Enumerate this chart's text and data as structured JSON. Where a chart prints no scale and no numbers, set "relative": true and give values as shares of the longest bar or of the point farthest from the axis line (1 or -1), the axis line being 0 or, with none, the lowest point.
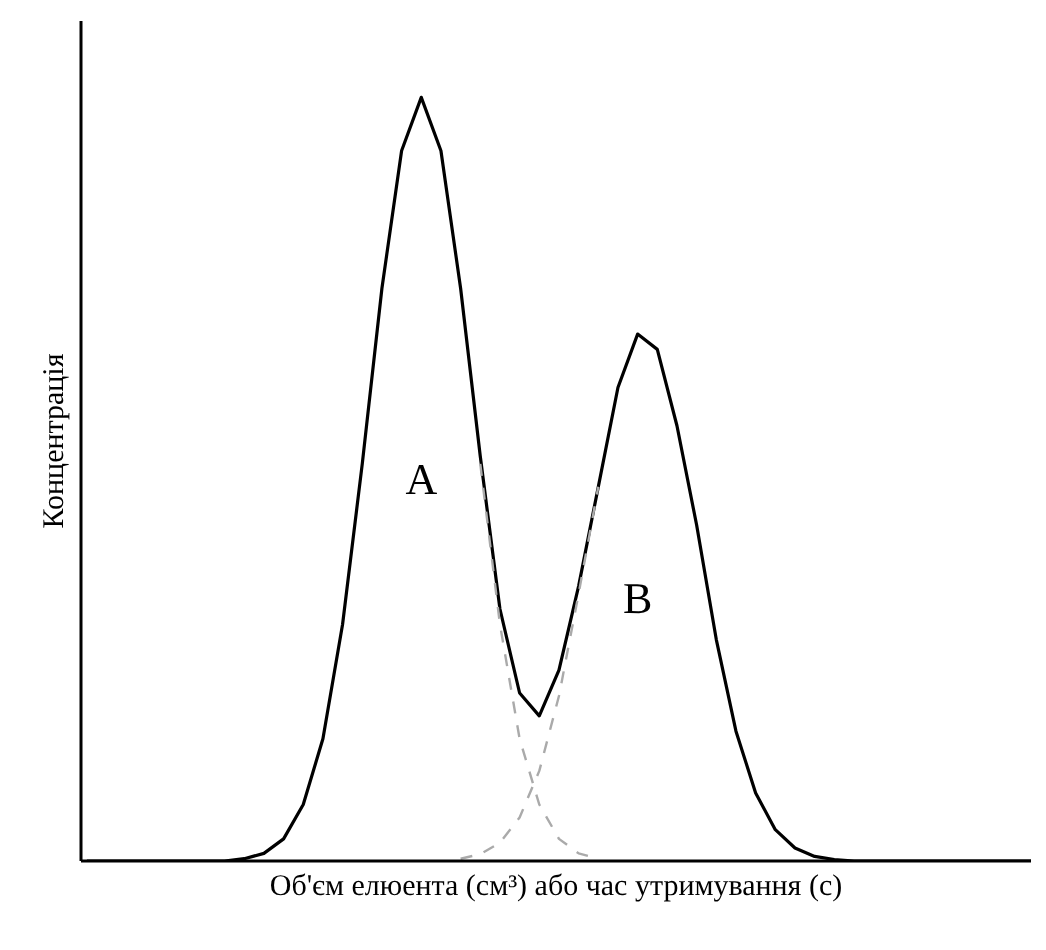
{
  "chart_data": {
    "type": "line",
    "relative": true,
    "xlabel": "Об'єм елюента (см³) або час утримування (с)",
    "ylabel": "Концентрація",
    "categories": [
      null,
      null,
      null,
      null,
      null,
      null,
      null,
      null,
      null,
      null,
      null,
      null,
      null,
      null,
      null,
      null,
      null,
      null,
      null,
      null,
      null,
      null,
      null,
      null,
      null,
      null,
      null,
      null,
      null,
      null,
      null,
      null,
      null,
      null,
      null,
      null,
      null,
      null,
      null,
      null,
      null,
      null,
      null,
      null,
      null,
      null,
      null,
      null,
      null
    ],
    "series": [
      {
        "color": "#000000",
        "line_style": "solid",
        "values": [
          0,
          0,
          0,
          0,
          0,
          0,
          0,
          0,
          0.003,
          0.01,
          0.029,
          0.074,
          0.16,
          0.31,
          0.52,
          0.75,
          0.93,
          1.0,
          0.93,
          0.75,
          0.53,
          0.33,
          0.22,
          0.19,
          0.25,
          0.36,
          0.49,
          0.62,
          0.69,
          0.67,
          0.57,
          0.44,
          0.29,
          0.17,
          0.089,
          0.041,
          0.017,
          0.006,
          0.002,
          0,
          0,
          0,
          0,
          0,
          0,
          0,
          0,
          0,
          0
        ]
      },
      {
        "color": "#aaaaaa",
        "line_style": "dashed",
        "values": [
          null,
          null,
          null,
          null,
          null,
          null,
          null,
          null,
          null,
          null,
          null,
          null,
          null,
          null,
          null,
          null,
          null,
          null,
          null,
          null,
          0.52,
          0.31,
          0.16,
          0.074,
          0.029,
          0.01,
          0.003,
          null,
          null,
          null,
          null,
          null,
          null,
          null,
          null,
          null,
          null,
          null,
          null,
          null,
          null,
          null,
          null,
          null,
          null,
          null,
          null,
          null,
          null
        ]
      },
      {
        "color": "#aaaaaa",
        "line_style": "dashed",
        "values": [
          null,
          null,
          null,
          null,
          null,
          null,
          null,
          null,
          null,
          null,
          null,
          null,
          null,
          null,
          null,
          null,
          null,
          null,
          null,
          0.003,
          0.009,
          0.024,
          0.057,
          0.118,
          0.216,
          0.35,
          0.49,
          null,
          null,
          null,
          null,
          null,
          null,
          null,
          null,
          null,
          null,
          null,
          null,
          null,
          null,
          null,
          null,
          null,
          null,
          null,
          null,
          null,
          null
        ]
      }
    ],
    "annotations": [
      "A",
      "B"
    ]
  }
}
